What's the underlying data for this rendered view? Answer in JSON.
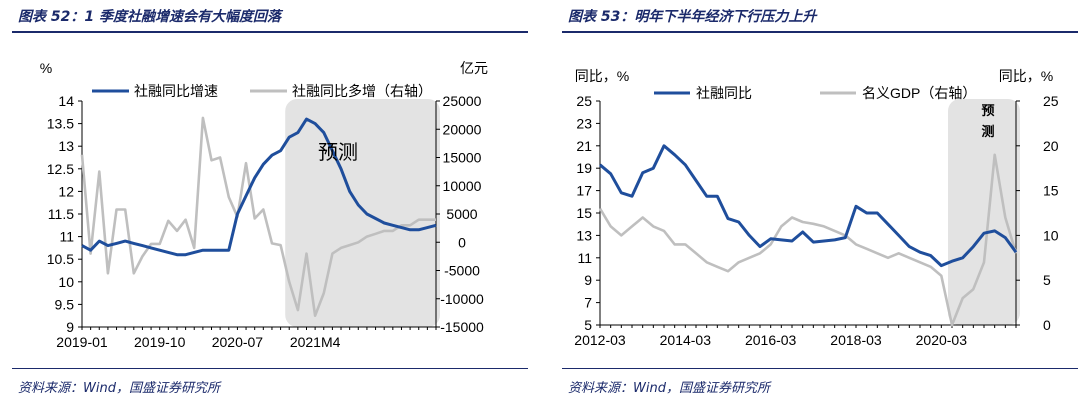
{
  "left": {
    "title": "图表 52：1 季度社融增速会有大幅度回落",
    "source": "资料来源：Wind，国盛证券研究所"
  },
  "right": {
    "title": "图表 53：明年下半年经济下行压力上升",
    "source": "资料来源：Wind，国盛证券研究所"
  },
  "colors": {
    "navy": "#1f4e9c",
    "gray": "#bfbfbf",
    "shade": "#e3e3e3",
    "title": "#1b2a6b"
  },
  "chart_data": [
    {
      "type": "line",
      "y_unit_left": "%",
      "y_unit_right": "亿元",
      "annotation": "预测",
      "x_ticks": [
        "2019-01",
        "2019-10",
        "2020-07",
        "2021M4"
      ],
      "x_tick_index": [
        0,
        9,
        18,
        27
      ],
      "n_points": 42,
      "shade_start_index": 24,
      "yleft_range": [
        9,
        14
      ],
      "yleft_ticks": [
        9,
        9.5,
        10,
        10.5,
        11,
        11.5,
        12,
        12.5,
        13,
        13.5,
        14
      ],
      "yright_range": [
        -15000,
        25000
      ],
      "yright_ticks": [
        -15000,
        -10000,
        -5000,
        0,
        5000,
        10000,
        15000,
        20000,
        25000
      ],
      "series": [
        {
          "name": "社融同比增速",
          "axis": "left",
          "values": [
            10.8,
            10.7,
            10.9,
            10.8,
            10.85,
            10.9,
            10.85,
            10.8,
            10.75,
            10.7,
            10.65,
            10.6,
            10.6,
            10.65,
            10.7,
            10.7,
            10.7,
            10.7,
            11.5,
            11.9,
            12.3,
            12.6,
            12.8,
            12.9,
            13.2,
            13.3,
            13.6,
            13.5,
            13.3,
            12.9,
            12.5,
            12.0,
            11.7,
            11.5,
            11.4,
            11.3,
            11.25,
            11.2,
            11.15,
            11.15,
            11.2,
            11.25
          ]
        },
        {
          "name": "社融同比多增（右轴）",
          "axis": "right",
          "values": [
            15500,
            -2000,
            12500,
            -5500,
            5800,
            5800,
            -5500,
            -2500,
            -300,
            -300,
            3800,
            2000,
            4000,
            -1000,
            22000,
            14500,
            15000,
            8000,
            4500,
            14000,
            4200,
            5800,
            -200,
            -500,
            -7000,
            -12000,
            -2000,
            -13000,
            -9000,
            -2000,
            -1000,
            -500,
            0,
            1000,
            1500,
            2000,
            2000,
            3000,
            3000,
            4000,
            4000,
            4000
          ]
        }
      ]
    },
    {
      "type": "line",
      "y_unit_left": "同比，%",
      "y_unit_right": "同比，%",
      "annotation": "预测",
      "x_ticks": [
        "2012-03",
        "2014-03",
        "2016-03",
        "2018-03",
        "2020-03"
      ],
      "x_tick_index": [
        0,
        8,
        16,
        24,
        32
      ],
      "n_points": 40,
      "shade_start_index": 33,
      "yleft_range": [
        5,
        25
      ],
      "yleft_ticks": [
        5,
        7,
        9,
        11,
        13,
        15,
        17,
        19,
        21,
        23,
        25
      ],
      "yright_range": [
        0,
        25
      ],
      "yright_ticks": [
        0,
        5,
        10,
        15,
        20,
        25
      ],
      "series": [
        {
          "name": "社融同比",
          "axis": "left",
          "values": [
            19.3,
            18.5,
            16.8,
            16.5,
            18.6,
            19.0,
            21.0,
            20.2,
            19.3,
            17.9,
            16.5,
            16.5,
            14.5,
            14.2,
            13.0,
            12.0,
            12.7,
            12.6,
            12.5,
            13.3,
            12.4,
            12.5,
            12.6,
            12.8,
            15.6,
            15.0,
            15.0,
            14.0,
            13.0,
            12.0,
            11.5,
            11.2,
            10.3,
            10.7,
            11.0,
            12.0,
            13.2,
            13.4,
            12.8,
            11.5
          ]
        },
        {
          "name": "名义GDP（右轴）",
          "axis": "right",
          "values": [
            13.0,
            11.0,
            10.0,
            11.0,
            12.0,
            11.0,
            10.5,
            9.0,
            9.0,
            8.0,
            7.0,
            6.5,
            6.0,
            7.0,
            7.5,
            8.0,
            9.0,
            11.0,
            12.0,
            11.5,
            11.3,
            11.0,
            10.5,
            10.0,
            9.0,
            8.5,
            8.0,
            7.5,
            8.0,
            7.5,
            7.0,
            6.5,
            5.5,
            0,
            3.0,
            4.0,
            7.0,
            19.0,
            12.0,
            8.0
          ]
        }
      ]
    }
  ]
}
